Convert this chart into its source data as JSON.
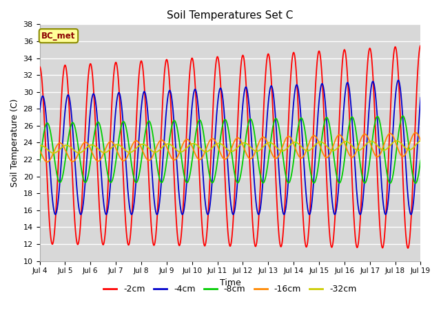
{
  "title": "Soil Temperatures Set C",
  "xlabel": "Time",
  "ylabel": "Soil Temperature (C)",
  "ylim": [
    10,
    38
  ],
  "annotation": "BC_met",
  "tick_labels": [
    "Jul 4",
    "Jul 5",
    "Jul 6",
    "Jul 7",
    "Jul 8",
    "Jul 9",
    "Jul 10",
    "Jul 11",
    "Jul 12",
    "Jul 13",
    "Jul 14",
    "Jul 15",
    "Jul 16",
    "Jul 17",
    "Jul 18",
    "Jul 19"
  ],
  "background_color": "#d8d8d8",
  "plot_bg_color": "#d8d8d8",
  "fig_bg_color": "#ffffff",
  "grid_color": "#ffffff",
  "series": [
    {
      "label": "-2cm",
      "color": "#ff0000",
      "mean_s": 22.5,
      "mean_e": 23.5,
      "amp_s": 10.5,
      "amp_e": 12.0,
      "phase": 0.75,
      "period": 1.0
    },
    {
      "label": "-4cm",
      "color": "#0000cc",
      "mean_s": 22.5,
      "mean_e": 23.5,
      "amp_s": 7.0,
      "amp_e": 8.0,
      "phase": 0.87,
      "period": 1.0
    },
    {
      "label": "-8cm",
      "color": "#00cc00",
      "mean_s": 22.8,
      "mean_e": 23.2,
      "amp_s": 3.5,
      "amp_e": 4.0,
      "phase": 1.05,
      "period": 1.0
    },
    {
      "label": "-16cm",
      "color": "#ff8800",
      "mean_s": 22.8,
      "mean_e": 23.8,
      "amp_s": 1.1,
      "amp_e": 1.4,
      "phase": 1.55,
      "period": 1.0
    },
    {
      "label": "-32cm",
      "color": "#cccc00",
      "mean_s": 23.2,
      "mean_e": 23.7,
      "amp_s": 0.45,
      "amp_e": 0.55,
      "phase": 2.8,
      "period": 1.0
    }
  ]
}
